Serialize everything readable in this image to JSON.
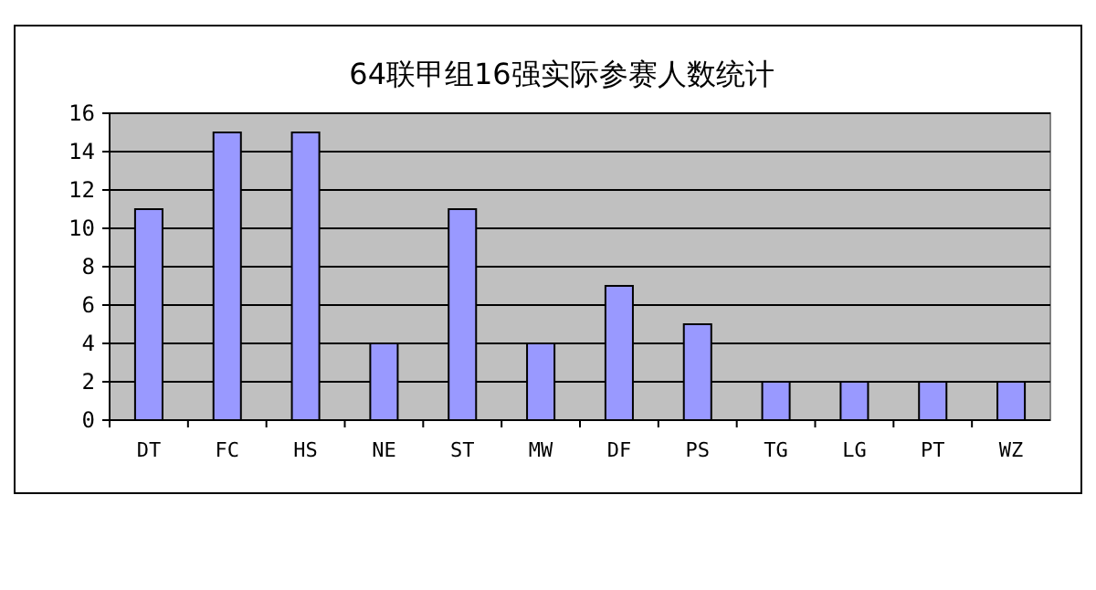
{
  "chart_data": {
    "type": "bar",
    "title": "64联甲组16强实际参赛人数统计",
    "categories": [
      "DT",
      "FC",
      "HS",
      "NE",
      "ST",
      "MW",
      "DF",
      "PS",
      "TG",
      "LG",
      "PT",
      "WZ"
    ],
    "values": [
      11,
      15,
      15,
      4,
      11,
      4,
      7,
      5,
      2,
      2,
      2,
      2
    ],
    "color": "#9999ff",
    "ylim": [
      0,
      16
    ],
    "yticks": [
      0,
      2,
      4,
      6,
      8,
      10,
      12,
      14,
      16
    ],
    "grid": "y"
  }
}
